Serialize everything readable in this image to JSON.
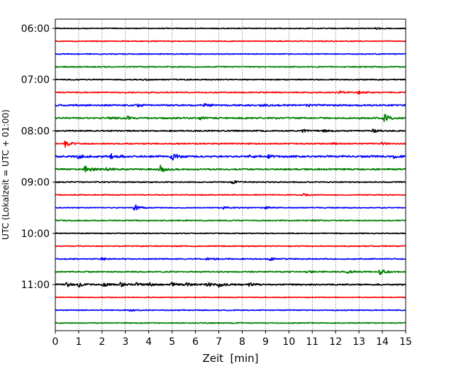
{
  "chart_data": {
    "type": "line",
    "title": "",
    "xlabel": "Zeit  [min]",
    "ylabel": "UTC (Lokalzeit = UTC + 01:00)",
    "xlim": [
      0,
      15
    ],
    "x_ticks": [
      0,
      1,
      2,
      3,
      4,
      5,
      6,
      7,
      8,
      9,
      10,
      11,
      12,
      13,
      14,
      15
    ],
    "y_ticks": [
      "06:00",
      "07:00",
      "08:00",
      "09:00",
      "10:00",
      "11:00"
    ],
    "grid": "vertical dotted",
    "trace_colors": [
      "#000000",
      "#ff0000",
      "#0000ff",
      "#008000"
    ],
    "traces": [
      {
        "time": "06:00",
        "color": "#000000",
        "noise": 0.6,
        "events": [
          {
            "t": 13.7,
            "a": 1.2
          }
        ]
      },
      {
        "time": "06:15",
        "color": "#ff0000",
        "noise": 0.6,
        "events": []
      },
      {
        "time": "06:30",
        "color": "#0000ff",
        "noise": 0.6,
        "events": []
      },
      {
        "time": "06:45",
        "color": "#008000",
        "noise": 0.7,
        "events": []
      },
      {
        "time": "07:00",
        "color": "#000000",
        "noise": 0.7,
        "events": [
          {
            "t": 3.8,
            "a": 1.0
          }
        ]
      },
      {
        "time": "07:15",
        "color": "#ff0000",
        "noise": 0.7,
        "events": [
          {
            "t": 12.2,
            "a": 1.5
          },
          {
            "t": 13.0,
            "a": 2.5
          }
        ]
      },
      {
        "time": "07:30",
        "color": "#0000ff",
        "noise": 1.0,
        "events": [
          {
            "t": 3.5,
            "a": 1.5
          },
          {
            "t": 6.4,
            "a": 2.0
          },
          {
            "t": 8.8,
            "a": 1.5
          },
          {
            "t": 10.8,
            "a": 1.5
          }
        ]
      },
      {
        "time": "07:45",
        "color": "#008000",
        "noise": 1.0,
        "events": [
          {
            "t": 2.3,
            "a": 1.5
          },
          {
            "t": 3.1,
            "a": 2.0
          },
          {
            "t": 6.2,
            "a": 2.0
          },
          {
            "t": 14.1,
            "a": 5.5
          }
        ]
      },
      {
        "time": "08:00",
        "color": "#000000",
        "noise": 0.8,
        "events": [
          {
            "t": 10.6,
            "a": 2.0
          },
          {
            "t": 11.5,
            "a": 1.5
          },
          {
            "t": 13.6,
            "a": 2.0
          }
        ]
      },
      {
        "time": "08:15",
        "color": "#ff0000",
        "noise": 0.8,
        "events": [
          {
            "t": 0.4,
            "a": 5.0
          },
          {
            "t": 11.9,
            "a": 1.5
          },
          {
            "t": 14.0,
            "a": 1.5
          }
        ]
      },
      {
        "time": "08:30",
        "color": "#0000ff",
        "noise": 1.2,
        "events": [
          {
            "t": 1.0,
            "a": 2.5
          },
          {
            "t": 2.4,
            "a": 4.0
          },
          {
            "t": 5.0,
            "a": 5.5
          },
          {
            "t": 8.3,
            "a": 2.5
          },
          {
            "t": 9.0,
            "a": 3.0
          },
          {
            "t": 14.5,
            "a": 2.0
          }
        ]
      },
      {
        "time": "08:45",
        "color": "#008000",
        "noise": 1.0,
        "events": [
          {
            "t": 1.3,
            "a": 6.0
          },
          {
            "t": 2.2,
            "a": 2.0
          },
          {
            "t": 4.5,
            "a": 5.5
          }
        ]
      },
      {
        "time": "09:00",
        "color": "#000000",
        "noise": 0.7,
        "events": [
          {
            "t": 7.6,
            "a": 2.0
          }
        ]
      },
      {
        "time": "09:15",
        "color": "#ff0000",
        "noise": 0.6,
        "events": [
          {
            "t": 10.6,
            "a": 1.8
          }
        ]
      },
      {
        "time": "09:30",
        "color": "#0000ff",
        "noise": 0.6,
        "events": [
          {
            "t": 3.4,
            "a": 4.5
          },
          {
            "t": 7.2,
            "a": 2.0
          },
          {
            "t": 9.0,
            "a": 1.8
          }
        ]
      },
      {
        "time": "09:45",
        "color": "#008000",
        "noise": 0.7,
        "events": [
          {
            "t": 11.0,
            "a": 1.5
          }
        ]
      },
      {
        "time": "10:00",
        "color": "#000000",
        "noise": 0.6,
        "events": []
      },
      {
        "time": "10:15",
        "color": "#ff0000",
        "noise": 0.6,
        "events": []
      },
      {
        "time": "10:30",
        "color": "#0000ff",
        "noise": 0.7,
        "events": [
          {
            "t": 2.0,
            "a": 2.0
          },
          {
            "t": 6.5,
            "a": 2.5
          },
          {
            "t": 9.2,
            "a": 2.0
          }
        ]
      },
      {
        "time": "10:45",
        "color": "#008000",
        "noise": 0.8,
        "events": [
          {
            "t": 10.8,
            "a": 2.0
          },
          {
            "t": 12.5,
            "a": 1.5
          },
          {
            "t": 13.9,
            "a": 3.5
          }
        ]
      },
      {
        "time": "11:00",
        "color": "#000000",
        "noise": 1.0,
        "events": [
          {
            "t": 0.5,
            "a": 3.0
          },
          {
            "t": 1.0,
            "a": 2.5
          },
          {
            "t": 2.0,
            "a": 3.0
          },
          {
            "t": 2.8,
            "a": 2.5
          },
          {
            "t": 3.4,
            "a": 3.0
          },
          {
            "t": 4.0,
            "a": 2.5
          },
          {
            "t": 5.0,
            "a": 2.5
          },
          {
            "t": 5.6,
            "a": 2.5
          },
          {
            "t": 6.5,
            "a": 2.5
          },
          {
            "t": 7.0,
            "a": 3.0
          },
          {
            "t": 8.3,
            "a": 2.0
          }
        ]
      },
      {
        "time": "11:15",
        "color": "#ff0000",
        "noise": 0.5,
        "events": []
      },
      {
        "time": "11:30",
        "color": "#0000ff",
        "noise": 0.6,
        "events": [
          {
            "t": 3.2,
            "a": 1.5
          }
        ]
      },
      {
        "time": "11:45",
        "color": "#008000",
        "noise": 0.6,
        "events": []
      }
    ]
  }
}
